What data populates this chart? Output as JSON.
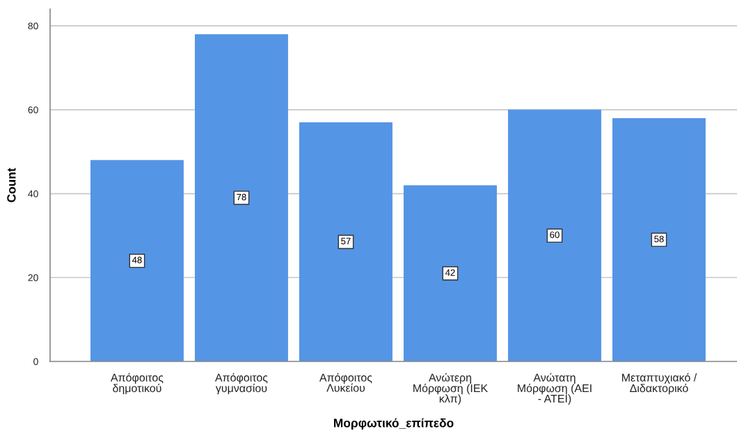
{
  "chart_data": {
    "type": "bar",
    "xlabel": "Μορφωτικό_επίπεδο",
    "ylabel": "Count",
    "categories": [
      "Απόφοιτος\nδημοτικού",
      "Απόφοιτος\nγυμνασίου",
      "Απόφοιτος\nΛυκείου",
      "Ανώτερη\nΜόρφωση (ΙΕΚ\nκλπ)",
      "Ανώτατη\nΜόρφωση (ΑΕΙ\n- ΑΤΕΙ)",
      "Μεταπτυχιακό /\nΔιδακτορικό"
    ],
    "values": [
      48,
      78,
      57,
      42,
      60,
      58
    ],
    "color": "#5595e5",
    "ylim": [
      0,
      84
    ],
    "yticks": [
      0,
      20,
      40,
      60,
      80
    ],
    "grid": "y",
    "data_labels": true,
    "legend": false
  }
}
